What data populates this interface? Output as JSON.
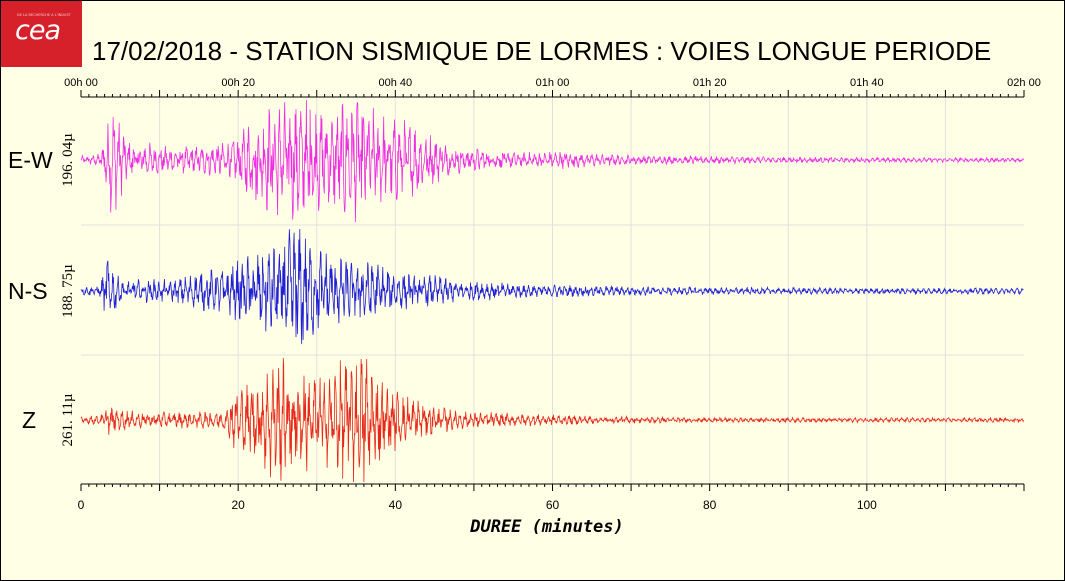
{
  "logo": {
    "word": "cea",
    "tagline": "DE LA RECHERCHE À L'INDUSTRIE"
  },
  "colors": {
    "background": "#ffffe6",
    "ew": "#ee2ee6",
    "ns": "#2020d8",
    "z": "#e8281c",
    "grid": "#e0e0e0"
  },
  "chart_data": {
    "type": "line",
    "title": "17/02/2018  -  STATION SISMIQUE DE LORMES : VOIES LONGUE PERIODE",
    "xlabel": "DUREE (minutes)",
    "xlim": [
      0,
      120
    ],
    "xticks": [
      0,
      20,
      40,
      60,
      80,
      100
    ],
    "top_axis_ticks": [
      "00h 00",
      "00h 20",
      "00h 40",
      "01h 00",
      "01h 20",
      "01h 40",
      "02h 00"
    ],
    "grid": true,
    "series": [
      {
        "name": "E-W",
        "amplitude_label": "196. 04µ",
        "color": "#ee2ee6",
        "envelope": [
          [
            0,
            0.05
          ],
          [
            2.5,
            0.08
          ],
          [
            3.5,
            0.55
          ],
          [
            4,
            0.75
          ],
          [
            5,
            0.5
          ],
          [
            6,
            0.25
          ],
          [
            8,
            0.25
          ],
          [
            10,
            0.18
          ],
          [
            14,
            0.18
          ],
          [
            18,
            0.22
          ],
          [
            20,
            0.3
          ],
          [
            22,
            0.6
          ],
          [
            25,
            0.75
          ],
          [
            27,
            0.8
          ],
          [
            29,
            0.9
          ],
          [
            30,
            0.7
          ],
          [
            32,
            0.6
          ],
          [
            34,
            0.85
          ],
          [
            35,
            0.9
          ],
          [
            36,
            0.75
          ],
          [
            38,
            0.6
          ],
          [
            40,
            0.55
          ],
          [
            43,
            0.45
          ],
          [
            45,
            0.3
          ],
          [
            48,
            0.18
          ],
          [
            52,
            0.14
          ],
          [
            56,
            0.1
          ],
          [
            62,
            0.12
          ],
          [
            66,
            0.08
          ],
          [
            72,
            0.06
          ],
          [
            80,
            0.05
          ],
          [
            90,
            0.04
          ],
          [
            100,
            0.03
          ],
          [
            120,
            0.03
          ]
        ]
      },
      {
        "name": "N-S",
        "amplitude_label": "188. 75µ",
        "color": "#2020d8",
        "envelope": [
          [
            0,
            0.05
          ],
          [
            2.5,
            0.08
          ],
          [
            3.3,
            0.5
          ],
          [
            4,
            0.35
          ],
          [
            5,
            0.15
          ],
          [
            8,
            0.15
          ],
          [
            12,
            0.15
          ],
          [
            15,
            0.25
          ],
          [
            18,
            0.3
          ],
          [
            20,
            0.4
          ],
          [
            22,
            0.5
          ],
          [
            24,
            0.6
          ],
          [
            26,
            0.7
          ],
          [
            27.5,
            1.0
          ],
          [
            29,
            0.7
          ],
          [
            30,
            0.6
          ],
          [
            32,
            0.5
          ],
          [
            34,
            0.4
          ],
          [
            36,
            0.45
          ],
          [
            38,
            0.35
          ],
          [
            40,
            0.25
          ],
          [
            45,
            0.2
          ],
          [
            48,
            0.15
          ],
          [
            52,
            0.12
          ],
          [
            56,
            0.1
          ],
          [
            60,
            0.08
          ],
          [
            70,
            0.06
          ],
          [
            80,
            0.05
          ],
          [
            100,
            0.04
          ],
          [
            120,
            0.04
          ]
        ]
      },
      {
        "name": "Z",
        "amplitude_label": "261. 11µ",
        "color": "#e8281c",
        "envelope": [
          [
            0,
            0.05
          ],
          [
            2.5,
            0.06
          ],
          [
            3.5,
            0.2
          ],
          [
            4,
            0.15
          ],
          [
            8,
            0.1
          ],
          [
            12,
            0.1
          ],
          [
            16,
            0.12
          ],
          [
            18,
            0.12
          ],
          [
            19.5,
            0.4
          ],
          [
            21,
            0.45
          ],
          [
            23,
            0.6
          ],
          [
            24,
            0.8
          ],
          [
            25,
            0.75
          ],
          [
            26,
            0.85
          ],
          [
            28,
            0.7
          ],
          [
            30,
            0.6
          ],
          [
            32,
            0.65
          ],
          [
            34,
            0.85
          ],
          [
            35,
            0.9
          ],
          [
            36,
            0.9
          ],
          [
            37,
            0.8
          ],
          [
            38,
            0.55
          ],
          [
            40,
            0.4
          ],
          [
            44,
            0.22
          ],
          [
            48,
            0.12
          ],
          [
            52,
            0.1
          ],
          [
            56,
            0.08
          ],
          [
            60,
            0.07
          ],
          [
            66,
            0.05
          ],
          [
            80,
            0.03
          ],
          [
            120,
            0.03
          ]
        ]
      }
    ]
  }
}
